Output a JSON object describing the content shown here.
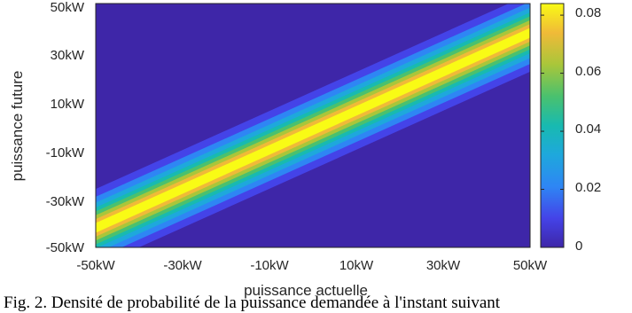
{
  "chart_data": {
    "type": "heatmap",
    "title": "",
    "xlabel": "puissance actuelle",
    "ylabel": "puissance future",
    "x_ticks": [
      "-50kW",
      "-30kW",
      "-10kW",
      "10kW",
      "30kW",
      "50kW"
    ],
    "y_ticks": [
      "50kW",
      "30kW",
      "10kW",
      "-10kW",
      "-30kW",
      "-50kW"
    ],
    "xlim": [
      -50,
      50
    ],
    "ylim": [
      -50,
      50
    ],
    "unit": "kW",
    "ridge": {
      "description_x": [
        -50,
        -30,
        -10,
        10,
        30,
        50
      ],
      "center_y": [
        -42,
        -26,
        -10,
        6,
        22,
        38
      ],
      "peak_density": 0.082
    },
    "colorbar": {
      "ticks": [
        "0.08",
        "0.06",
        "0.04",
        "0.02",
        "0"
      ],
      "tick_values": [
        0.08,
        0.06,
        0.04,
        0.02,
        0
      ],
      "range": [
        0,
        0.084
      ],
      "colormap": "parula"
    },
    "colors": {
      "low": "#3e26a8",
      "mid_low": "#2e86f4",
      "mid": "#1fb6b0",
      "mid_high": "#a9c63a",
      "high": "#f9fb15"
    }
  },
  "caption": "Fig. 2. Densité de probabilité de la puissance demandée à l'instant suivant"
}
